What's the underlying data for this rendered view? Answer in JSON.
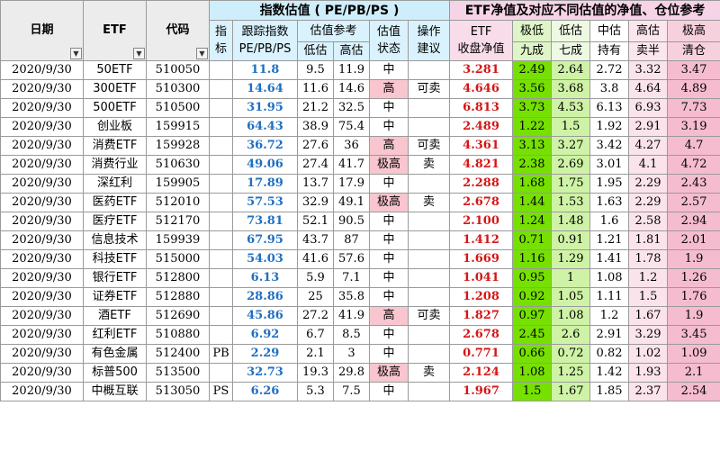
{
  "sheet": {
    "headers": {
      "date": "日期",
      "etf": "ETF",
      "code": "代码",
      "valuation_band": "指数估值 ( PE/PB/PS )",
      "etf_band": "ETF净值及对应不同估值的净值、仓位参考",
      "indicator": [
        "指",
        "标"
      ],
      "track": [
        "跟踪指数",
        "PE/PB/PS"
      ],
      "ref": "估值参考",
      "low": "低估",
      "high": "高估",
      "state": [
        "估值",
        "状态"
      ],
      "action": [
        "操作",
        "建议"
      ],
      "nav": [
        "ETF",
        "收盘净值"
      ],
      "col_jd": [
        "极低",
        "九成"
      ],
      "col_qd": [
        "低估",
        "七成"
      ],
      "col_zg": [
        "中估",
        "持有"
      ],
      "col_gg": [
        "高估",
        "卖半"
      ],
      "col_jg": [
        "极高",
        "清仓"
      ]
    },
    "state_colors": {
      "高": "#f9c6cf",
      "极高": "#f9c6cf"
    },
    "rows": [
      {
        "date": "2020/9/30",
        "name": "50ETF",
        "code": "510050",
        "ind": "",
        "track": "11.8",
        "low": "9.5",
        "high": "11.9",
        "state": "中",
        "action": "",
        "nav": "3.281",
        "jd": "2.49",
        "qd": "2.64",
        "zg": "2.72",
        "gg": "3.32",
        "jg": "3.47"
      },
      {
        "date": "2020/9/30",
        "name": "300ETF",
        "code": "510300",
        "ind": "",
        "track": "14.64",
        "low": "11.6",
        "high": "14.6",
        "state": "高",
        "action": "可卖",
        "nav": "4.646",
        "jd": "3.56",
        "qd": "3.68",
        "zg": "3.8",
        "gg": "4.64",
        "jg": "4.89"
      },
      {
        "date": "2020/9/30",
        "name": "500ETF",
        "code": "510500",
        "ind": "",
        "track": "31.95",
        "low": "21.2",
        "high": "32.5",
        "state": "中",
        "action": "",
        "nav": "6.813",
        "jd": "3.73",
        "qd": "4.53",
        "zg": "6.13",
        "gg": "6.93",
        "jg": "7.73"
      },
      {
        "date": "2020/9/30",
        "name": "创业板",
        "code": "159915",
        "ind": "",
        "track": "64.43",
        "low": "38.9",
        "high": "75.4",
        "state": "中",
        "action": "",
        "nav": "2.489",
        "jd": "1.22",
        "qd": "1.5",
        "zg": "1.92",
        "gg": "2.91",
        "jg": "3.19"
      },
      {
        "date": "2020/9/30",
        "name": "消费ETF",
        "code": "159928",
        "ind": "",
        "track": "36.72",
        "low": "27.6",
        "high": "36",
        "state": "高",
        "action": "可卖",
        "nav": "4.361",
        "jd": "3.13",
        "qd": "3.27",
        "zg": "3.42",
        "gg": "4.27",
        "jg": "4.7"
      },
      {
        "date": "2020/9/30",
        "name": "消费行业",
        "code": "510630",
        "ind": "",
        "track": "49.06",
        "low": "27.4",
        "high": "41.7",
        "state": "极高",
        "action": "卖",
        "nav": "4.821",
        "jd": "2.38",
        "qd": "2.69",
        "zg": "3.01",
        "gg": "4.1",
        "jg": "4.72"
      },
      {
        "date": "2020/9/30",
        "name": "深红利",
        "code": "159905",
        "ind": "",
        "track": "17.89",
        "low": "13.7",
        "high": "17.9",
        "state": "中",
        "action": "",
        "nav": "2.288",
        "jd": "1.68",
        "qd": "1.75",
        "zg": "1.95",
        "gg": "2.29",
        "jg": "2.43"
      },
      {
        "date": "2020/9/30",
        "name": "医药ETF",
        "code": "512010",
        "ind": "",
        "track": "57.53",
        "low": "32.9",
        "high": "49.1",
        "state": "极高",
        "action": "卖",
        "nav": "2.678",
        "jd": "1.44",
        "qd": "1.53",
        "zg": "1.63",
        "gg": "2.29",
        "jg": "2.57"
      },
      {
        "date": "2020/9/30",
        "name": "医疗ETF",
        "code": "512170",
        "ind": "",
        "track": "73.81",
        "low": "52.1",
        "high": "90.5",
        "state": "中",
        "action": "",
        "nav": "2.100",
        "jd": "1.24",
        "qd": "1.48",
        "zg": "1.6",
        "gg": "2.58",
        "jg": "2.94"
      },
      {
        "date": "2020/9/30",
        "name": "信息技术",
        "code": "159939",
        "ind": "",
        "track": "67.95",
        "low": "43.7",
        "high": "87",
        "state": "中",
        "action": "",
        "nav": "1.412",
        "jd": "0.71",
        "qd": "0.91",
        "zg": "1.21",
        "gg": "1.81",
        "jg": "2.01"
      },
      {
        "date": "2020/9/30",
        "name": "科技ETF",
        "code": "515000",
        "ind": "",
        "track": "54.03",
        "low": "41.6",
        "high": "57.6",
        "state": "中",
        "action": "",
        "nav": "1.669",
        "jd": "1.16",
        "qd": "1.29",
        "zg": "1.41",
        "gg": "1.78",
        "jg": "1.9"
      },
      {
        "date": "2020/9/30",
        "name": "银行ETF",
        "code": "512800",
        "ind": "",
        "track": "6.13",
        "low": "5.9",
        "high": "7.1",
        "state": "中",
        "action": "",
        "nav": "1.041",
        "jd": "0.95",
        "qd": "1",
        "zg": "1.08",
        "gg": "1.2",
        "jg": "1.26"
      },
      {
        "date": "2020/9/30",
        "name": "证券ETF",
        "code": "512880",
        "ind": "",
        "track": "28.86",
        "low": "25",
        "high": "35.8",
        "state": "中",
        "action": "",
        "nav": "1.208",
        "jd": "0.92",
        "qd": "1.05",
        "zg": "1.11",
        "gg": "1.5",
        "jg": "1.76"
      },
      {
        "date": "2020/9/30",
        "name": "酒ETF",
        "code": "512690",
        "ind": "",
        "track": "45.86",
        "low": "27.2",
        "high": "41.9",
        "state": "高",
        "action": "可卖",
        "nav": "1.827",
        "jd": "0.97",
        "qd": "1.08",
        "zg": "1.2",
        "gg": "1.67",
        "jg": "1.9"
      },
      {
        "date": "2020/9/30",
        "name": "红利ETF",
        "code": "510880",
        "ind": "",
        "track": "6.92",
        "low": "6.7",
        "high": "8.5",
        "state": "中",
        "action": "",
        "nav": "2.678",
        "jd": "2.45",
        "qd": "2.6",
        "zg": "2.91",
        "gg": "3.29",
        "jg": "3.45"
      },
      {
        "date": "2020/9/30",
        "name": "有色金属",
        "code": "512400",
        "ind": "PB",
        "track": "2.29",
        "low": "2.1",
        "high": "3",
        "state": "中",
        "action": "",
        "nav": "0.771",
        "jd": "0.66",
        "qd": "0.72",
        "zg": "0.82",
        "gg": "1.02",
        "jg": "1.09"
      },
      {
        "date": "2020/9/30",
        "name": "标普500",
        "code": "513500",
        "ind": "",
        "track": "32.73",
        "low": "19.3",
        "high": "29.8",
        "state": "极高",
        "action": "卖",
        "nav": "2.124",
        "jd": "1.08",
        "qd": "1.25",
        "zg": "1.42",
        "gg": "1.93",
        "jg": "2.1"
      },
      {
        "date": "2020/9/30",
        "name": "中概互联",
        "code": "513050",
        "ind": "PS",
        "track": "6.26",
        "low": "5.3",
        "high": "7.5",
        "state": "中",
        "action": "",
        "nav": "1.967",
        "jd": "1.5",
        "qd": "1.67",
        "zg": "1.85",
        "gg": "2.37",
        "jg": "2.54"
      }
    ]
  }
}
